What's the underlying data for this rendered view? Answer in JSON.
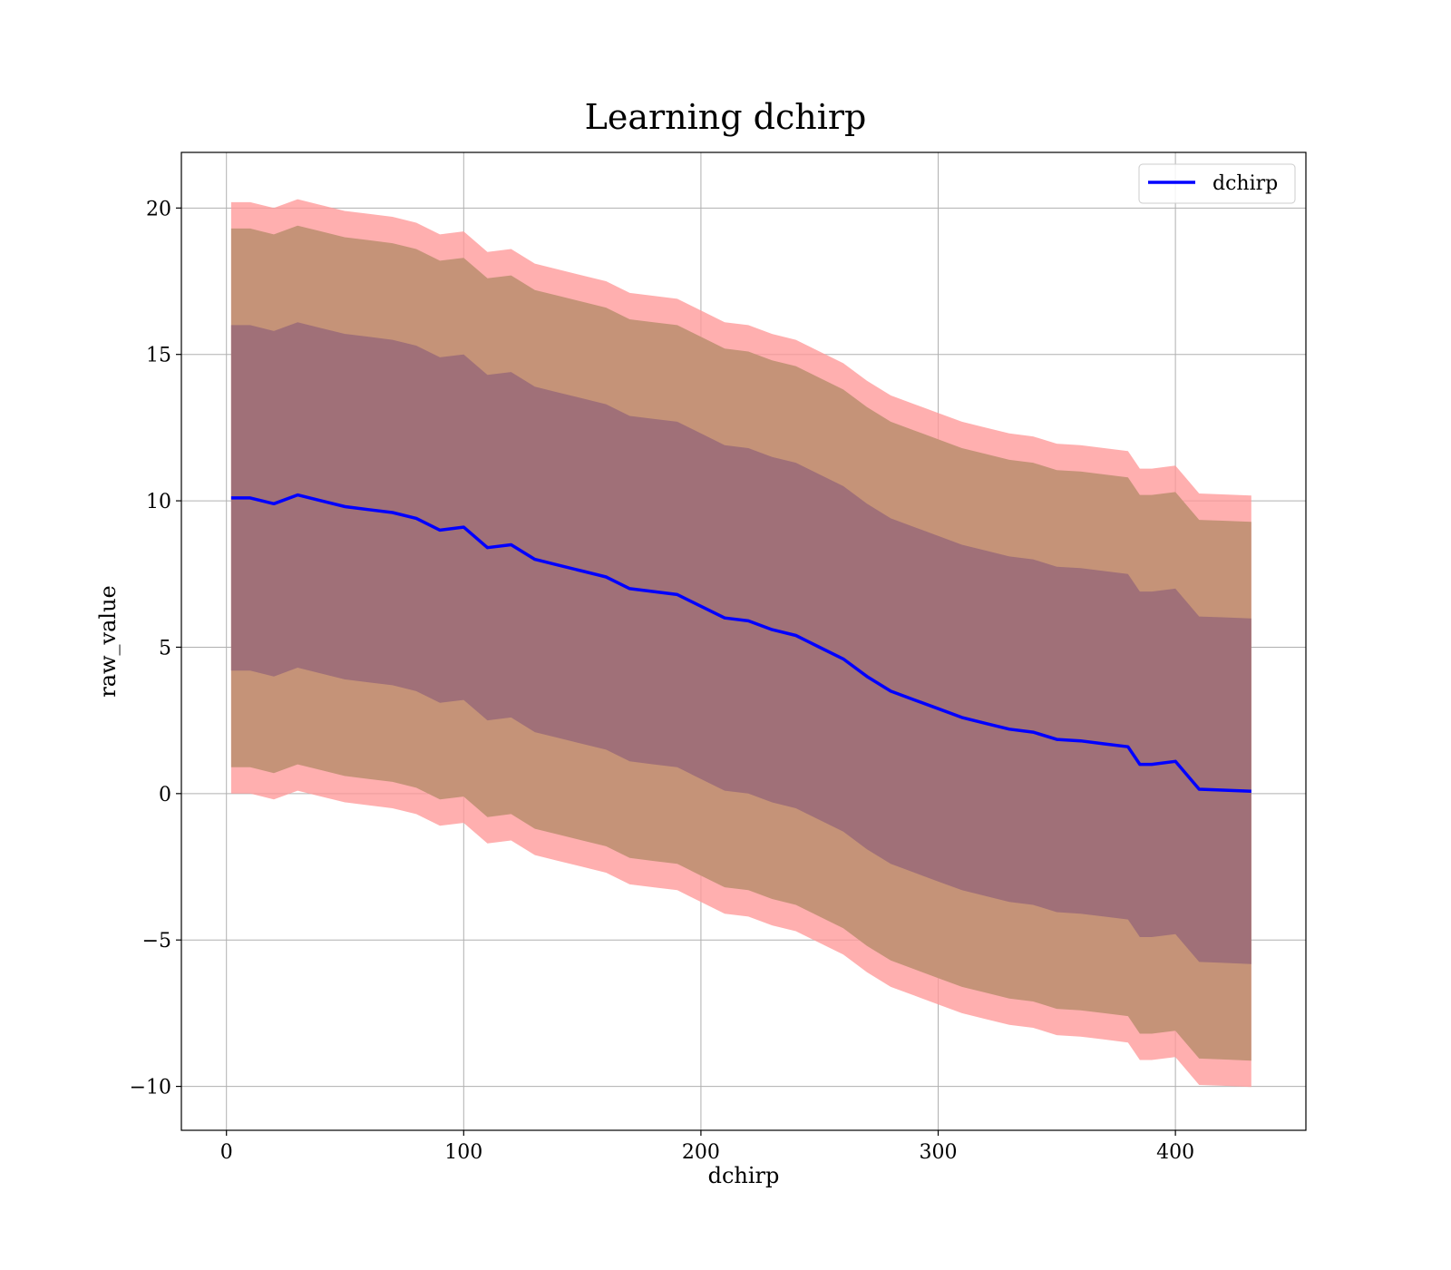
{
  "chart_data": {
    "type": "line",
    "title": "Learning dchirp",
    "xlabel": "dchirp",
    "ylabel": "raw_value",
    "xlim": [
      -19,
      455
    ],
    "ylim": [
      -11.5,
      21.9
    ],
    "xticks": [
      0,
      100,
      200,
      300,
      400
    ],
    "yticks": [
      -10,
      -5,
      0,
      5,
      10,
      15,
      20
    ],
    "ytick_labels": [
      "−10",
      "−5",
      "0",
      "5",
      "10",
      "15",
      "20"
    ],
    "grid": true,
    "legend_position": "top-right",
    "colors": {
      "line": "#0000ff",
      "band_outer": "#ff9999",
      "band_middle": "#c59378",
      "band_inner": "#a07078",
      "grid": "#b0b0b0"
    },
    "series": [
      {
        "name": "dchirp",
        "x": [
          2,
          10,
          20,
          30,
          40,
          50,
          60,
          70,
          80,
          90,
          100,
          110,
          120,
          130,
          140,
          150,
          160,
          170,
          180,
          190,
          200,
          210,
          220,
          230,
          240,
          250,
          260,
          270,
          280,
          290,
          300,
          310,
          320,
          330,
          340,
          350,
          360,
          370,
          380,
          385,
          390,
          400,
          410,
          420,
          432
        ],
        "mean": [
          10.1,
          10.1,
          9.9,
          10.2,
          10.0,
          9.8,
          9.7,
          9.6,
          9.4,
          9.0,
          9.1,
          8.4,
          8.5,
          8.0,
          7.8,
          7.6,
          7.4,
          7.0,
          6.9,
          6.8,
          6.4,
          6.0,
          5.9,
          5.6,
          5.4,
          5.0,
          4.6,
          4.0,
          3.5,
          3.2,
          2.9,
          2.6,
          2.4,
          2.2,
          2.1,
          1.85,
          1.8,
          1.7,
          1.6,
          1.0,
          1.0,
          1.1,
          0.15,
          0.12,
          0.08
        ],
        "lower_1std": [
          4.2,
          4.2,
          4.0,
          4.3,
          4.1,
          3.9,
          3.8,
          3.7,
          3.5,
          3.1,
          3.2,
          2.5,
          2.6,
          2.1,
          1.9,
          1.7,
          1.5,
          1.1,
          1.0,
          0.9,
          0.5,
          0.1,
          0.0,
          -0.3,
          -0.5,
          -0.9,
          -1.3,
          -1.9,
          -2.4,
          -2.7,
          -3.0,
          -3.3,
          -3.5,
          -3.7,
          -3.8,
          -4.05,
          -4.1,
          -4.2,
          -4.3,
          -4.9,
          -4.9,
          -4.8,
          -5.75,
          -5.78,
          -5.82
        ],
        "upper_1std": [
          16.0,
          16.0,
          15.8,
          16.1,
          15.9,
          15.7,
          15.6,
          15.5,
          15.3,
          14.9,
          15.0,
          14.3,
          14.4,
          13.9,
          13.7,
          13.5,
          13.3,
          12.9,
          12.8,
          12.7,
          12.3,
          11.9,
          11.8,
          11.5,
          11.3,
          10.9,
          10.5,
          9.9,
          9.4,
          9.1,
          8.8,
          8.5,
          8.3,
          8.1,
          8.0,
          7.75,
          7.7,
          7.6,
          7.5,
          6.9,
          6.9,
          7.0,
          6.05,
          6.02,
          5.98
        ],
        "lower_2std": [
          0.9,
          0.9,
          0.7,
          1.0,
          0.8,
          0.6,
          0.5,
          0.4,
          0.2,
          -0.2,
          -0.1,
          -0.8,
          -0.7,
          -1.2,
          -1.4,
          -1.6,
          -1.8,
          -2.2,
          -2.3,
          -2.4,
          -2.8,
          -3.2,
          -3.3,
          -3.6,
          -3.8,
          -4.2,
          -4.6,
          -5.2,
          -5.7,
          -6.0,
          -6.3,
          -6.6,
          -6.8,
          -7.0,
          -7.1,
          -7.35,
          -7.4,
          -7.5,
          -7.6,
          -8.2,
          -8.2,
          -8.1,
          -9.05,
          -9.08,
          -9.12
        ],
        "upper_2std": [
          19.3,
          19.3,
          19.1,
          19.4,
          19.2,
          19.0,
          18.9,
          18.8,
          18.6,
          18.2,
          18.3,
          17.6,
          17.7,
          17.2,
          17.0,
          16.8,
          16.6,
          16.2,
          16.1,
          16.0,
          15.6,
          15.2,
          15.1,
          14.8,
          14.6,
          14.2,
          13.8,
          13.2,
          12.7,
          12.4,
          12.1,
          11.8,
          11.6,
          11.4,
          11.3,
          11.05,
          11.0,
          10.9,
          10.8,
          10.2,
          10.2,
          10.3,
          9.35,
          9.32,
          9.28
        ],
        "lower_3std": [
          0.0,
          0.0,
          -0.2,
          0.1,
          -0.1,
          -0.3,
          -0.4,
          -0.5,
          -0.7,
          -1.1,
          -1.0,
          -1.7,
          -1.6,
          -2.1,
          -2.3,
          -2.5,
          -2.7,
          -3.1,
          -3.2,
          -3.3,
          -3.7,
          -4.1,
          -4.2,
          -4.5,
          -4.7,
          -5.1,
          -5.5,
          -6.1,
          -6.6,
          -6.9,
          -7.2,
          -7.5,
          -7.7,
          -7.9,
          -8.0,
          -8.25,
          -8.3,
          -8.4,
          -8.5,
          -9.1,
          -9.1,
          -9.0,
          -9.95,
          -9.98,
          -10.02
        ],
        "upper_3std": [
          20.2,
          20.2,
          20.0,
          20.3,
          20.1,
          19.9,
          19.8,
          19.7,
          19.5,
          19.1,
          19.2,
          18.5,
          18.6,
          18.1,
          17.9,
          17.7,
          17.5,
          17.1,
          17.0,
          16.9,
          16.5,
          16.1,
          16.0,
          15.7,
          15.5,
          15.1,
          14.7,
          14.1,
          13.6,
          13.3,
          13.0,
          12.7,
          12.5,
          12.3,
          12.2,
          11.95,
          11.9,
          11.8,
          11.7,
          11.1,
          11.1,
          11.2,
          10.25,
          10.22,
          10.18
        ]
      }
    ]
  }
}
